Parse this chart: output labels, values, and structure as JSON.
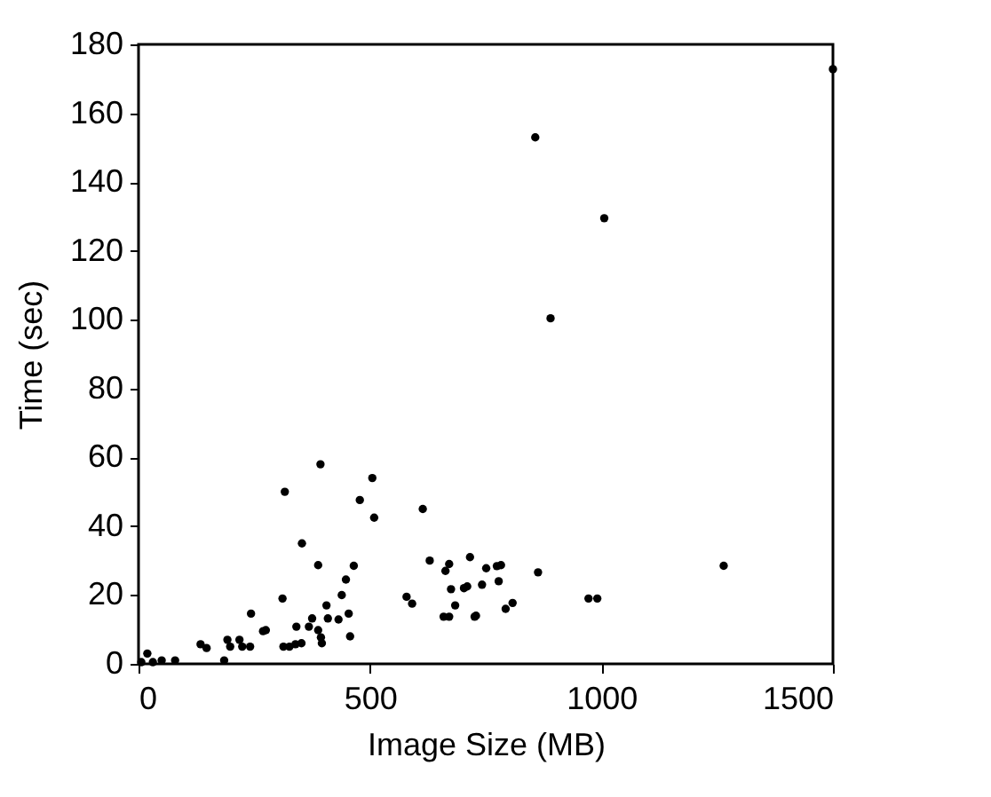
{
  "chart_data": {
    "type": "scatter",
    "xlabel": "Image Size (MB)",
    "ylabel": "Time (sec)",
    "xlim": [
      0,
      1500
    ],
    "xticks": [
      0,
      500,
      1000,
      1500
    ],
    "ylim": [
      0,
      180
    ],
    "yticks": [
      0,
      20,
      40,
      60,
      80,
      100,
      120,
      140,
      160,
      180
    ],
    "grid": false,
    "legend": false,
    "marker": "circle",
    "series": [
      {
        "color": "#000000",
        "x": [
          6,
          19,
          31,
          50,
          79,
          134,
          147,
          185,
          192,
          198,
          218,
          224,
          241,
          243,
          269,
          275,
          311,
          316,
          313,
          326,
          339,
          352,
          341,
          353,
          368,
          375,
          388,
          393,
          388,
          394,
          396,
          406,
          409,
          432,
          439,
          448,
          454,
          457,
          465,
          478,
          505,
          509,
          579,
          591,
          614,
          629,
          663,
          671,
          659,
          671,
          675,
          684,
          703,
          716,
          726,
          710,
          729,
          742,
          751,
          774,
          783,
          778,
          793,
          808,
          863,
          972,
          991,
          1264,
          857,
          1006,
          890,
          1500
        ],
        "values": [
          0.5,
          3,
          0.5,
          1,
          1,
          5.7,
          4.6,
          1,
          7,
          5,
          7,
          5,
          5,
          14.6,
          9.5,
          9.8,
          19,
          50,
          5,
          5,
          5.7,
          6,
          10.8,
          35,
          10.8,
          13.2,
          28.7,
          58,
          9.8,
          7.7,
          6,
          17,
          13.2,
          12.9,
          20,
          24.5,
          14.6,
          8,
          28.5,
          47.6,
          54,
          42.5,
          19.5,
          17.5,
          45,
          30,
          27,
          29,
          13.7,
          13.7,
          21.7,
          17,
          22,
          31,
          13.7,
          22.5,
          14,
          23,
          27.8,
          28.4,
          28.7,
          24,
          16,
          17.7,
          26.6,
          19,
          19,
          28.5,
          153,
          129.5,
          100.4,
          172.8
        ]
      }
    ]
  }
}
